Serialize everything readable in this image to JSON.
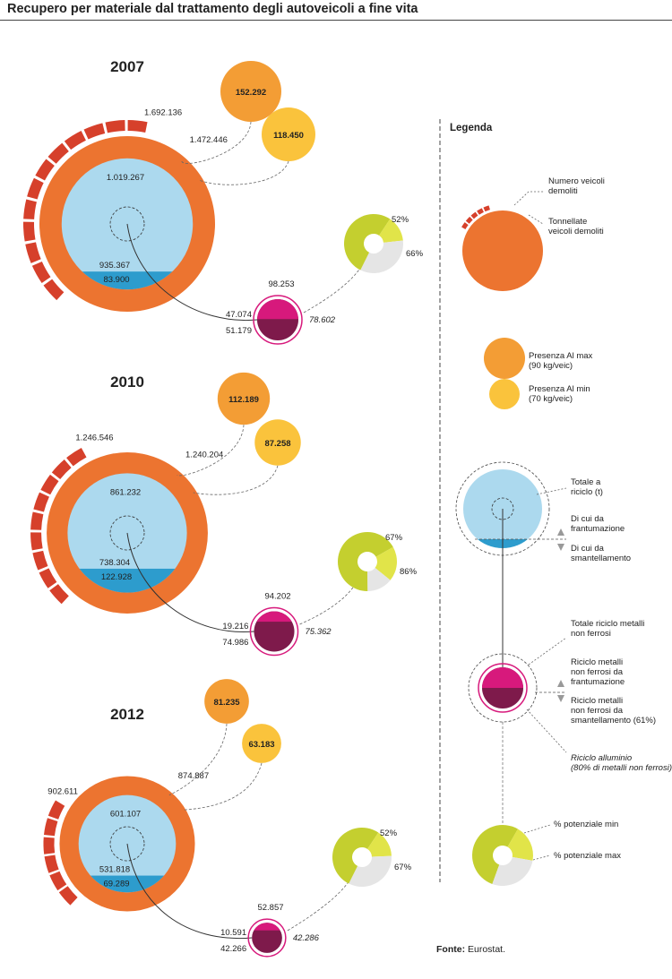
{
  "title": "Recupero per materiale dal trattamento degli autoveicoli a fine vita",
  "source": {
    "label": "Fonte:",
    "text": "Eurostat."
  },
  "colors": {
    "vehicles_bar": "#d6402b",
    "tonnes_ring": "#ec7430",
    "recycling_total": "#acd9ee",
    "dismantling": "#2d9ccd",
    "al_max": "#f39d35",
    "al_min": "#fac33c",
    "nonferrous_top": "#d7197c",
    "nonferrous_bottom": "#7e1a4b",
    "pot_min": "#c4cf2f",
    "pot_max": "#e1e449",
    "pot_rest": "#e5e5e5"
  },
  "chart_data": [
    {
      "type": "other",
      "year": "2007",
      "vehicles_demolished": 1692136,
      "vehicles_label": "1.692.136",
      "tonnes_demolished": 1472446,
      "tonnes_label": "1.472.446",
      "total_recycling": 1019267,
      "total_recycling_label": "1.019.267",
      "from_shredding": 935367,
      "from_shredding_label": "935.367",
      "from_dismantling": 83900,
      "from_dismantling_label": "83.900",
      "al_max": 152292,
      "al_max_label": "152.292",
      "al_min": 118450,
      "al_min_label": "118.450",
      "nonferrous_total": 98253,
      "nonferrous_total_label": "98.253",
      "nonferrous_shredding": 47074,
      "nonferrous_shredding_label": "47.074",
      "nonferrous_dismantling": 51179,
      "nonferrous_dismantling_label": "51.179",
      "aluminium": 78602,
      "aluminium_label": "78.602",
      "potential_min_pct": 52,
      "potential_min_label": "52%",
      "potential_max_pct": 66,
      "potential_max_label": "66%"
    },
    {
      "type": "other",
      "year": "2010",
      "vehicles_demolished": 1246546,
      "vehicles_label": "1.246.546",
      "tonnes_demolished": 1240204,
      "tonnes_label": "1.240.204",
      "total_recycling": 861232,
      "total_recycling_label": "861.232",
      "from_shredding": 738304,
      "from_shredding_label": "738.304",
      "from_dismantling": 122928,
      "from_dismantling_label": "122.928",
      "al_max": 112189,
      "al_max_label": "112.189",
      "al_min": 87258,
      "al_min_label": "87.258",
      "nonferrous_total": 94202,
      "nonferrous_total_label": "94.202",
      "nonferrous_shredding": 19216,
      "nonferrous_shredding_label": "19.216",
      "nonferrous_dismantling": 74986,
      "nonferrous_dismantling_label": "74.986",
      "aluminium": 75362,
      "aluminium_label": "75.362",
      "potential_min_pct": 67,
      "potential_min_label": "67%",
      "potential_max_pct": 86,
      "potential_max_label": "86%"
    },
    {
      "type": "other",
      "year": "2012",
      "vehicles_demolished": 902611,
      "vehicles_label": "902.611",
      "tonnes_demolished": 874887,
      "tonnes_label": "874.887",
      "total_recycling": 601107,
      "total_recycling_label": "601.107",
      "from_shredding": 531818,
      "from_shredding_label": "531.818",
      "from_dismantling": 69289,
      "from_dismantling_label": "69.289",
      "al_max": 81235,
      "al_max_label": "81.235",
      "al_min": 63183,
      "al_min_label": "63.183",
      "nonferrous_total": 52857,
      "nonferrous_total_label": "52.857",
      "nonferrous_shredding": 10591,
      "nonferrous_shredding_label": "10.591",
      "nonferrous_dismantling": 42266,
      "nonferrous_dismantling_label": "42.266",
      "aluminium": 42286,
      "aluminium_label": "42.286",
      "potential_min_pct": 52,
      "potential_min_label": "52%",
      "potential_max_pct": 67,
      "potential_max_label": "67%"
    }
  ],
  "legend": {
    "title": "Legenda",
    "vehicles": [
      "Numero veicoli",
      "demoliti"
    ],
    "tonnes": [
      "Tonnellate",
      "veicoli demoliti"
    ],
    "al_max": [
      "Presenza Al max",
      "(90 kg/veic)"
    ],
    "al_min": [
      "Presenza Al min",
      "(70 kg/veic)"
    ],
    "total_recycling": [
      "Totale a",
      "riciclo (t)"
    ],
    "shredding": [
      "Di cui da",
      "frantumazione"
    ],
    "dismantling": [
      "Di cui da",
      "smantellamento"
    ],
    "nf_total": [
      "Totale riciclo metalli",
      "non ferrosi"
    ],
    "nf_shredding": [
      "Riciclo metalli",
      "non ferrosi da",
      "frantumazione"
    ],
    "nf_dismantling": [
      "Riciclo metalli",
      "non ferrosi da",
      "smantellamento (61%)"
    ],
    "aluminium": [
      "Riciclo alluminio",
      "(80% di metalli non ferrosi)"
    ],
    "pot_min": "% potenziale min",
    "pot_max": "% potenziale max"
  }
}
